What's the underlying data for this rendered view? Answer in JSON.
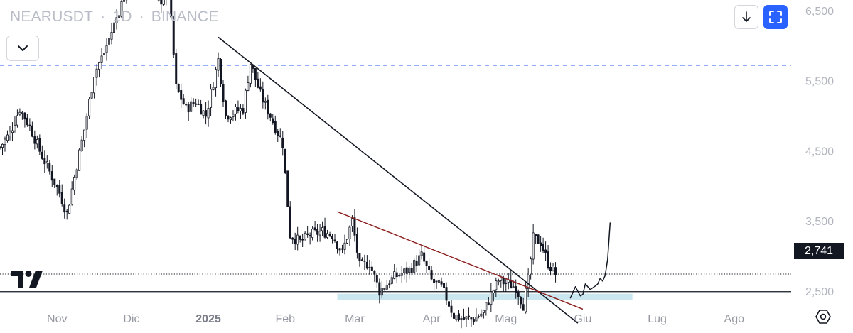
{
  "header": {
    "symbol": "NEARUSDT",
    "interval": "1D",
    "exchange": "BINANCE",
    "separator": "·"
  },
  "toolbar": {
    "collapse_icon": "chevron-down-icon",
    "download_icon": "arrow-down-icon",
    "fit_icon": "fit-screen-icon",
    "accent_color": "#2962ff"
  },
  "footer": {
    "logo": "tradingview-logo",
    "settings_icon": "settings-hexagon-icon"
  },
  "chart_data": {
    "type": "candlestick",
    "x_axis": {
      "tick_labels": [
        "Nov",
        "Dic",
        "2025",
        "Feb",
        "Mar",
        "Apr",
        "Mag",
        "Giu",
        "Lug",
        "Ago"
      ],
      "tick_dates": [
        "2024-11-01",
        "2024-12-01",
        "2025-01-01",
        "2025-02-01",
        "2025-03-01",
        "2025-04-01",
        "2025-05-01",
        "2025-06-01",
        "2025-07-01",
        "2025-08-01"
      ],
      "range": [
        "2024-10-09",
        "2025-08-24"
      ]
    },
    "y_axis": {
      "tick_labels": [
        "6,500",
        "5,500",
        "4,500",
        "3,500",
        "2,500"
      ],
      "tick_values": [
        6.5,
        5.5,
        4.5,
        3.5,
        2.5
      ],
      "range": [
        1.9,
        6.65
      ],
      "position": "right"
    },
    "last_price": {
      "value": 2.741,
      "label": "2,741",
      "color": "#131722"
    },
    "horizontal_levels": [
      {
        "price": 5.72,
        "style": "dashed",
        "color": "#2962ff"
      },
      {
        "price": 2.741,
        "style": "dotted",
        "color": "#131722"
      },
      {
        "price": 2.49,
        "style": "solid",
        "color": "#131722"
      }
    ],
    "support_zone": {
      "from": "2025-02-22",
      "to": "2025-06-21",
      "low": 2.37,
      "high": 2.46,
      "color": "#b8dde9"
    },
    "trendlines": [
      {
        "from": [
          "2025-01-05",
          6.12
        ],
        "to": [
          "2025-05-30",
          2.04
        ],
        "color": "#131722"
      },
      {
        "from": [
          "2025-02-22",
          3.63
        ],
        "to": [
          "2025-06-01",
          2.24
        ],
        "color": "#8b1a1a"
      }
    ],
    "projection_path": [
      [
        "2025-05-27",
        2.4
      ],
      [
        "2025-05-29",
        2.56
      ],
      [
        "2025-05-31",
        2.43
      ],
      [
        "2025-06-01",
        2.45
      ],
      [
        "2025-06-02",
        2.6
      ],
      [
        "2025-06-04",
        2.52
      ],
      [
        "2025-06-06",
        2.57
      ],
      [
        "2025-06-07",
        2.6
      ],
      [
        "2025-06-08",
        2.68
      ],
      [
        "2025-06-09",
        2.64
      ],
      [
        "2025-06-10",
        2.72
      ],
      [
        "2025-06-11",
        2.95
      ],
      [
        "2025-06-12",
        3.47
      ]
    ],
    "price_path": [
      [
        "2024-10-09",
        4.55
      ],
      [
        "2024-10-13",
        4.75
      ],
      [
        "2024-10-17",
        5.1
      ],
      [
        "2024-10-21",
        4.85
      ],
      [
        "2024-10-25",
        4.5
      ],
      [
        "2024-10-29",
        4.2
      ],
      [
        "2024-11-02",
        3.9
      ],
      [
        "2024-11-05",
        3.6
      ],
      [
        "2024-11-09",
        4.3
      ],
      [
        "2024-11-12",
        4.8
      ],
      [
        "2024-11-16",
        5.6
      ],
      [
        "2024-11-20",
        5.9
      ],
      [
        "2024-11-25",
        6.4
      ],
      [
        "2024-11-29",
        6.8
      ],
      [
        "2024-12-04",
        7.4
      ],
      [
        "2024-12-08",
        7.1
      ],
      [
        "2024-12-12",
        6.6
      ],
      [
        "2024-12-16",
        6.8
      ],
      [
        "2024-12-19",
        5.4
      ],
      [
        "2024-12-23",
        5.1
      ],
      [
        "2024-12-27",
        5.2
      ],
      [
        "2024-12-31",
        5.0
      ],
      [
        "2025-01-05",
        5.8
      ],
      [
        "2025-01-08",
        5.0
      ],
      [
        "2025-01-11",
        5.05
      ],
      [
        "2025-01-15",
        5.1
      ],
      [
        "2025-01-18",
        5.75
      ],
      [
        "2025-01-22",
        5.3
      ],
      [
        "2025-01-26",
        5.0
      ],
      [
        "2025-01-31",
        4.6
      ],
      [
        "2025-02-03",
        3.3
      ],
      [
        "2025-02-07",
        3.2
      ],
      [
        "2025-02-11",
        3.3
      ],
      [
        "2025-02-16",
        3.35
      ],
      [
        "2025-02-20",
        3.3
      ],
      [
        "2025-02-24",
        3.05
      ],
      [
        "2025-02-28",
        3.5
      ],
      [
        "2025-03-03",
        2.85
      ],
      [
        "2025-03-07",
        2.9
      ],
      [
        "2025-03-11",
        2.5
      ],
      [
        "2025-03-17",
        2.7
      ],
      [
        "2025-03-23",
        2.8
      ],
      [
        "2025-03-28",
        3.0
      ],
      [
        "2025-04-01",
        2.65
      ],
      [
        "2025-04-05",
        2.55
      ],
      [
        "2025-04-07",
        2.4
      ],
      [
        "2025-04-10",
        2.15
      ],
      [
        "2025-04-14",
        2.1
      ],
      [
        "2025-04-18",
        2.1
      ],
      [
        "2025-04-22",
        2.2
      ],
      [
        "2025-04-25",
        2.45
      ],
      [
        "2025-04-28",
        2.65
      ],
      [
        "2025-05-02",
        2.6
      ],
      [
        "2025-05-05",
        2.55
      ],
      [
        "2025-05-08",
        2.3
      ],
      [
        "2025-05-10",
        2.65
      ],
      [
        "2025-05-12",
        3.25
      ],
      [
        "2025-05-15",
        3.2
      ],
      [
        "2025-05-18",
        2.9
      ],
      [
        "2025-05-21",
        2.74
      ]
    ]
  }
}
